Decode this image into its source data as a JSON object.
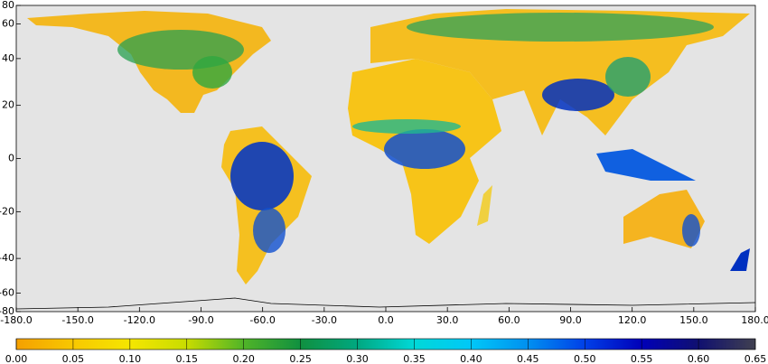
{
  "map": {
    "xlim": [
      -180,
      180
    ],
    "ylim": [
      -80,
      80
    ],
    "xticks": [
      {
        "value": -180,
        "label": "-180.0"
      },
      {
        "value": -150,
        "label": "-150.0"
      },
      {
        "value": -120,
        "label": "-120.0"
      },
      {
        "value": -90,
        "label": "-90.0"
      },
      {
        "value": -60,
        "label": "-60.0"
      },
      {
        "value": -30,
        "label": "-30.0"
      },
      {
        "value": 0,
        "label": "0.0"
      },
      {
        "value": 30,
        "label": "30.0"
      },
      {
        "value": 60,
        "label": "60.0"
      },
      {
        "value": 90,
        "label": "90.0"
      },
      {
        "value": 120,
        "label": "120.0"
      },
      {
        "value": 150,
        "label": "150.0"
      },
      {
        "value": 180,
        "label": "180.0"
      }
    ],
    "yticks": [
      80,
      60,
      40,
      20,
      0,
      -20,
      -40,
      -60,
      -80
    ],
    "colorbar": {
      "lim": [
        0,
        0.65
      ],
      "ticks": [
        {
          "value": 0,
          "label": "0.00"
        },
        {
          "value": 0.05,
          "label": "0.05"
        },
        {
          "value": 0.1,
          "label": "0.10"
        },
        {
          "value": 0.15,
          "label": "0.15"
        },
        {
          "value": 0.2,
          "label": "0.20"
        },
        {
          "value": 0.25,
          "label": "0.25"
        },
        {
          "value": 0.3,
          "label": "0.30"
        },
        {
          "value": 0.35,
          "label": "0.35"
        },
        {
          "value": 0.4,
          "label": "0.40"
        },
        {
          "value": 0.45,
          "label": "0.45"
        },
        {
          "value": 0.5,
          "label": "0.50"
        },
        {
          "value": 0.55,
          "label": "0.55"
        },
        {
          "value": 0.6,
          "label": "0.60"
        },
        {
          "value": 0.65,
          "label": "0.65"
        }
      ],
      "colors": [
        "#f5a000",
        "#f8c800",
        "#f5e600",
        "#c8dc00",
        "#50b428",
        "#109040",
        "#00a880",
        "#00d8d8",
        "#00c8f8",
        "#0090f0",
        "#0040e8",
        "#0000b8",
        "#101070",
        "#404050"
      ]
    }
  }
}
